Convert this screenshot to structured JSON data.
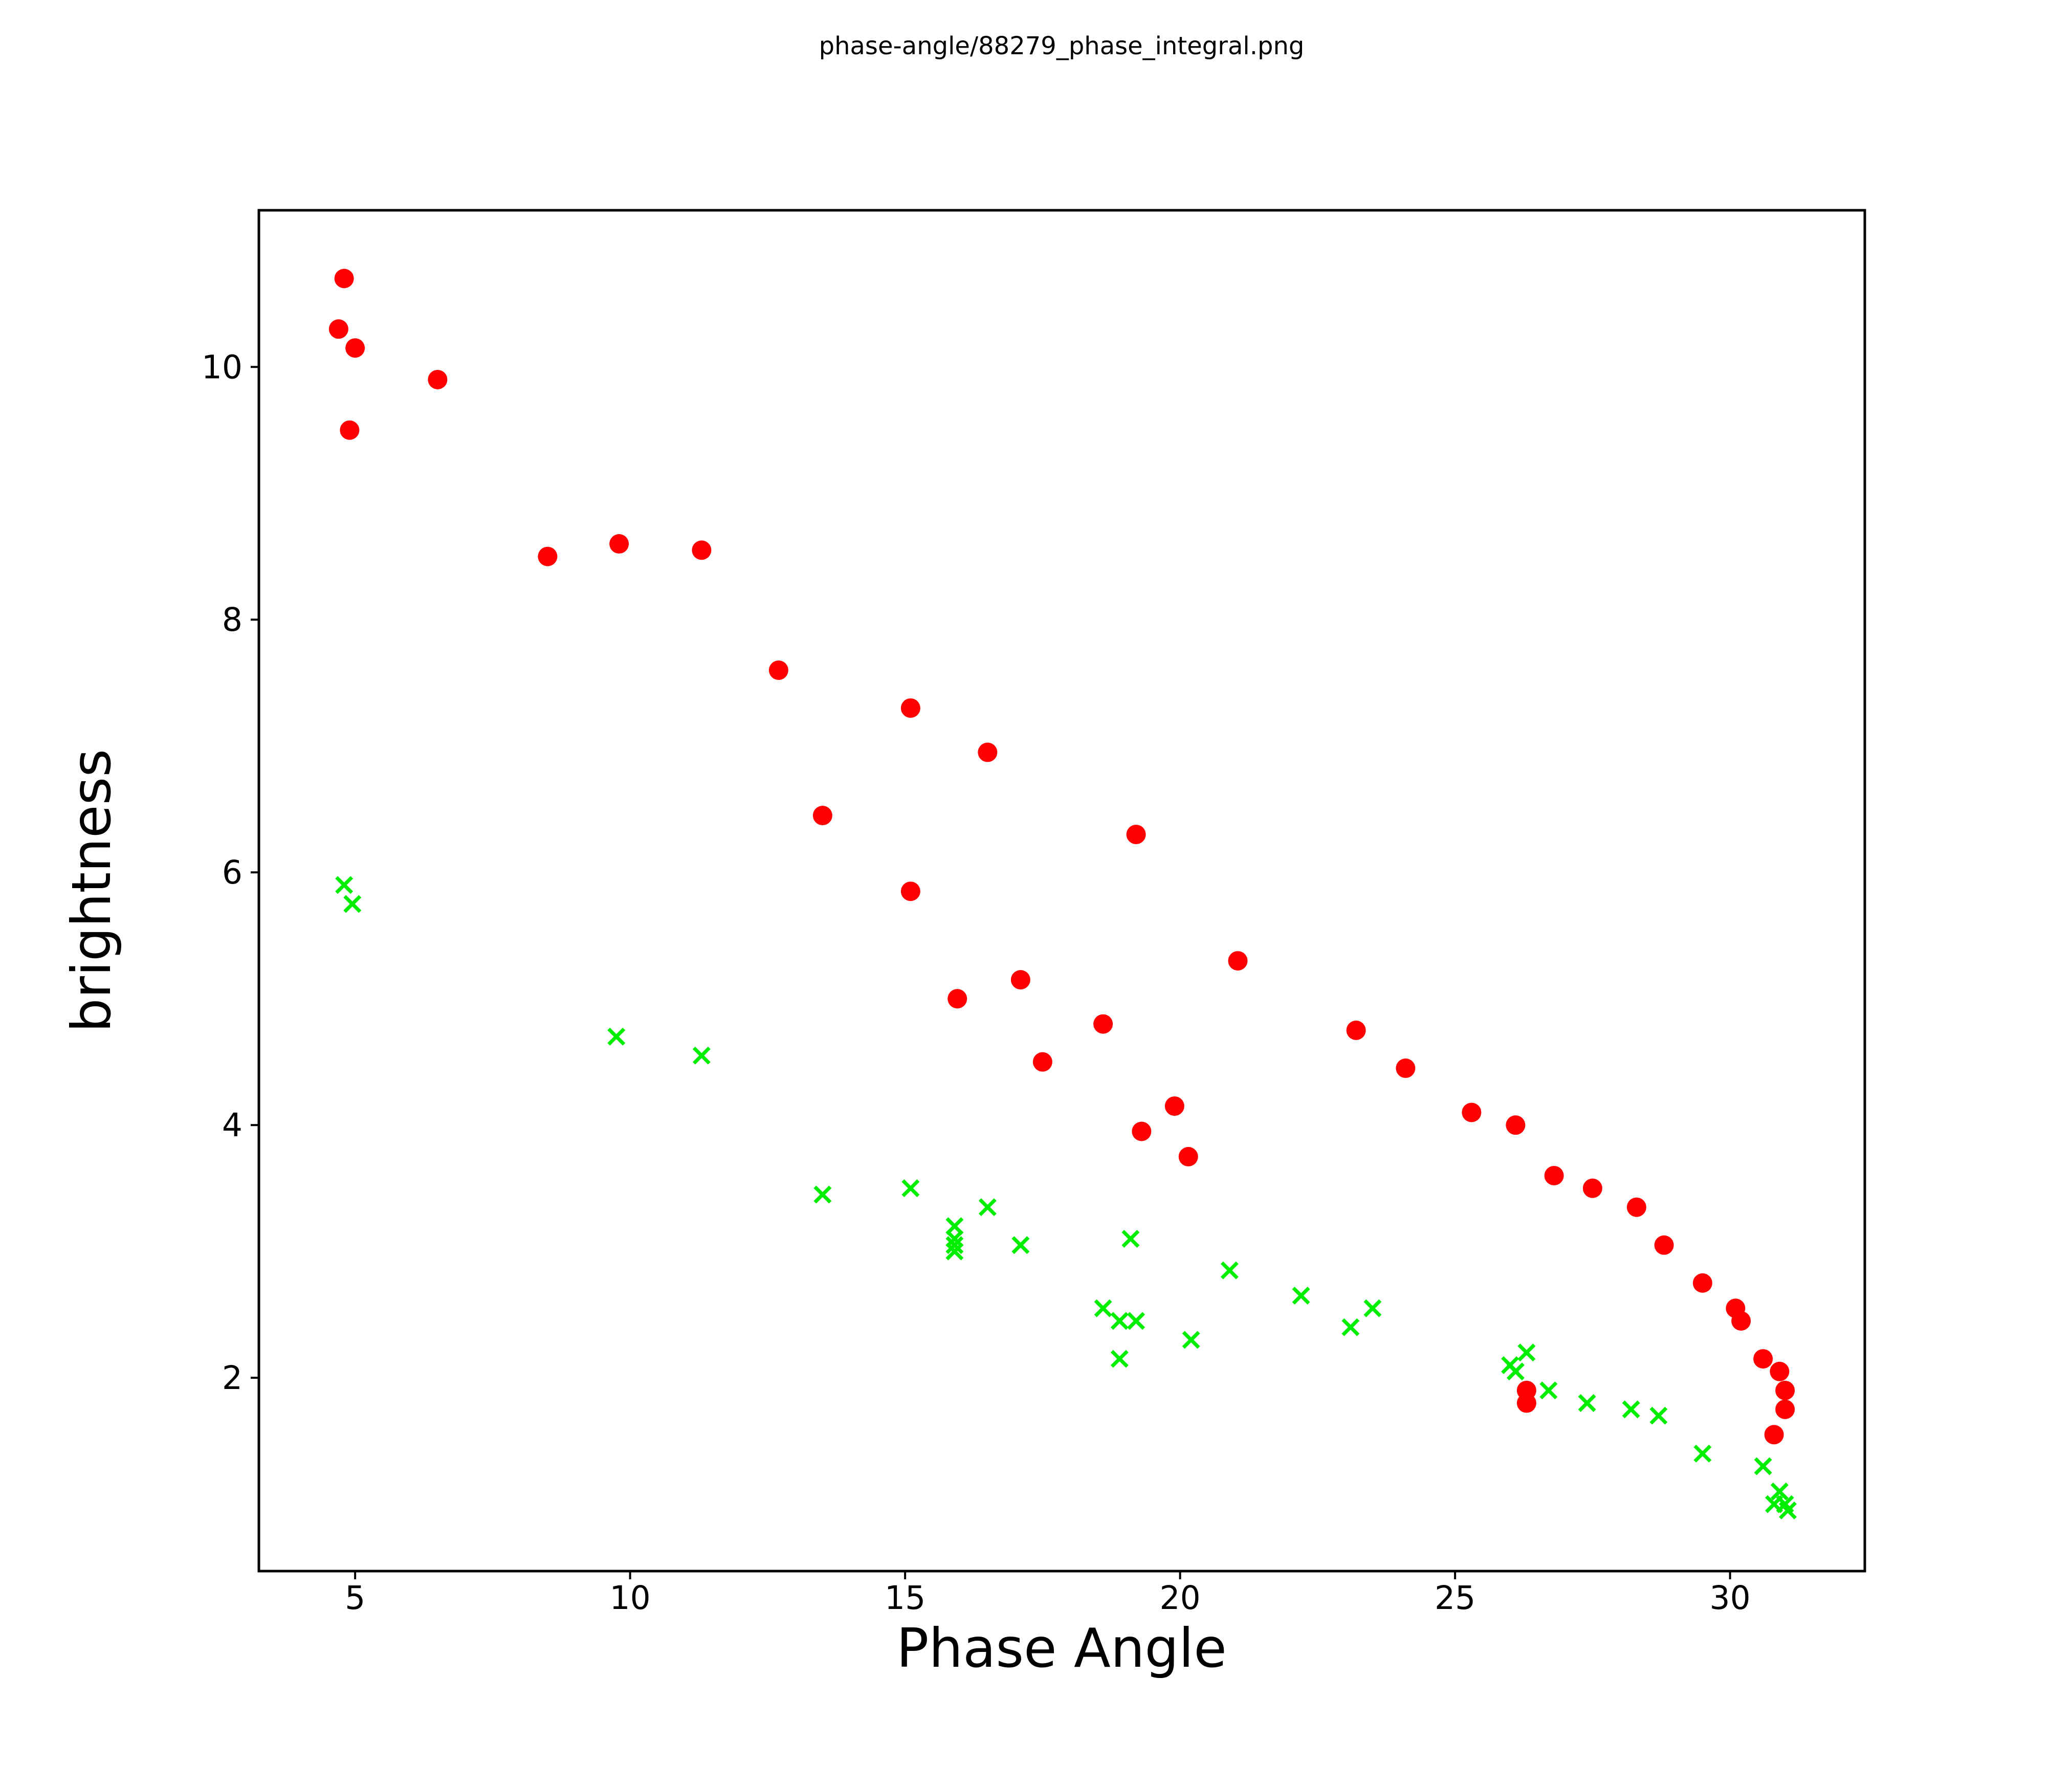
{
  "figure": {
    "title": "phase-angle/88279_phase_integral.png"
  },
  "chart_data": {
    "type": "scatter",
    "title": "phase-angle/88279_phase_integral.png",
    "xlabel": "Phase Angle",
    "ylabel": "brightness",
    "xlim": [
      3.25,
      32.45
    ],
    "ylim": [
      0.47,
      11.24
    ],
    "x_ticks": [
      5,
      10,
      15,
      20,
      25,
      30
    ],
    "y_ticks": [
      2,
      4,
      6,
      8,
      10
    ],
    "grid": false,
    "legend_position": "none",
    "series": [
      {
        "name": "red-filled-circles",
        "marker": "circle",
        "color": "#ff0000",
        "marker_radius_px": 19,
        "points": [
          [
            4.7,
            10.3
          ],
          [
            4.8,
            10.7
          ],
          [
            4.9,
            9.5
          ],
          [
            5.0,
            10.15
          ],
          [
            6.5,
            9.9
          ],
          [
            8.5,
            8.5
          ],
          [
            9.8,
            8.6
          ],
          [
            11.3,
            8.55
          ],
          [
            12.7,
            7.6
          ],
          [
            13.5,
            6.45
          ],
          [
            15.1,
            7.3
          ],
          [
            15.1,
            5.85
          ],
          [
            15.95,
            5.0
          ],
          [
            16.5,
            6.95
          ],
          [
            17.1,
            5.15
          ],
          [
            17.5,
            4.5
          ],
          [
            18.6,
            4.8
          ],
          [
            19.2,
            6.3
          ],
          [
            19.3,
            3.95
          ],
          [
            19.9,
            4.15
          ],
          [
            20.15,
            3.75
          ],
          [
            21.05,
            5.3
          ],
          [
            23.2,
            4.75
          ],
          [
            24.1,
            4.45
          ],
          [
            25.3,
            4.1
          ],
          [
            26.1,
            4.0
          ],
          [
            26.3,
            1.9
          ],
          [
            26.3,
            1.8
          ],
          [
            26.8,
            3.6
          ],
          [
            27.5,
            3.5
          ],
          [
            28.3,
            3.35
          ],
          [
            28.8,
            3.05
          ],
          [
            29.5,
            2.75
          ],
          [
            30.1,
            2.55
          ],
          [
            30.2,
            2.45
          ],
          [
            30.6,
            2.15
          ],
          [
            30.8,
            1.55
          ],
          [
            30.9,
            2.05
          ],
          [
            31.0,
            1.9
          ],
          [
            31.0,
            1.75
          ]
        ]
      },
      {
        "name": "green-x-crosses",
        "marker": "x",
        "color": "#00ee00",
        "marker_half_size_px": 15,
        "marker_stroke_px": 7,
        "points": [
          [
            4.8,
            5.9
          ],
          [
            4.95,
            5.75
          ],
          [
            9.75,
            4.7
          ],
          [
            11.3,
            4.55
          ],
          [
            13.5,
            3.45
          ],
          [
            15.1,
            3.5
          ],
          [
            15.9,
            3.2
          ],
          [
            15.9,
            3.1
          ],
          [
            15.9,
            3.05
          ],
          [
            15.9,
            3.0
          ],
          [
            16.5,
            3.35
          ],
          [
            17.1,
            3.05
          ],
          [
            18.6,
            2.55
          ],
          [
            18.9,
            2.45
          ],
          [
            18.9,
            2.15
          ],
          [
            19.1,
            3.1
          ],
          [
            19.2,
            2.45
          ],
          [
            20.2,
            2.3
          ],
          [
            20.9,
            2.85
          ],
          [
            22.2,
            2.65
          ],
          [
            23.1,
            2.4
          ],
          [
            23.5,
            2.55
          ],
          [
            26.0,
            2.1
          ],
          [
            26.1,
            2.05
          ],
          [
            26.3,
            2.2
          ],
          [
            26.7,
            1.9
          ],
          [
            27.4,
            1.8
          ],
          [
            28.2,
            1.75
          ],
          [
            28.7,
            1.7
          ],
          [
            29.5,
            1.4
          ],
          [
            30.6,
            1.3
          ],
          [
            30.8,
            1.0
          ],
          [
            30.9,
            1.1
          ],
          [
            31.0,
            1.0
          ],
          [
            31.05,
            0.95
          ]
        ]
      }
    ]
  }
}
